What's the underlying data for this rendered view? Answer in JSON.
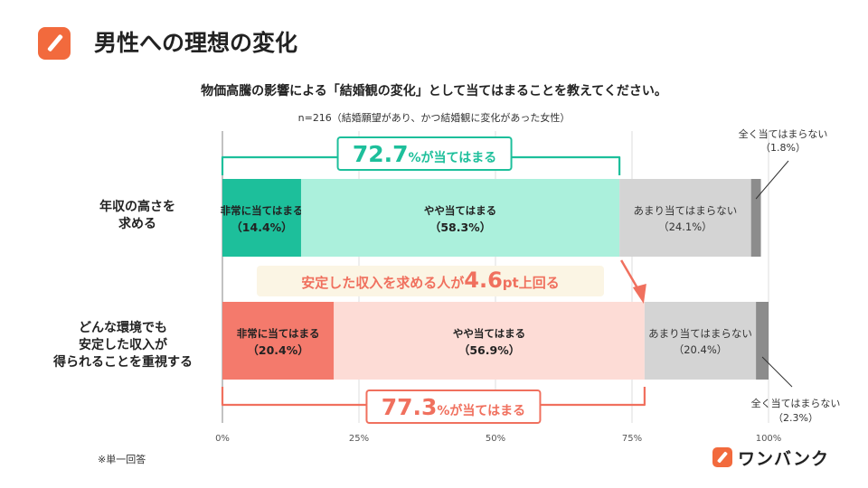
{
  "header": {
    "title": "男性への理想の変化",
    "question": "物価高騰の影響による「結婚観の変化」として当てはまることを教えてください。",
    "sample": "n=216（結婚願望があり、かつ結婚観に変化があった女性）"
  },
  "footer": {
    "note": "※単一回答",
    "brand": "ワンバンク"
  },
  "colors": {
    "row1": [
      "#1dbf9b",
      "#abf0dc",
      "#d4d4d4",
      "#8c8c8c"
    ],
    "row2": [
      "#f47a6c",
      "#fddcd6",
      "#d4d4d4",
      "#8c8c8c"
    ],
    "accent_green": "#1dbf9b",
    "accent_red": "#f0705e",
    "accent_brand": "#f26a3d"
  },
  "chart_data": {
    "type": "bar",
    "orientation": "horizontal",
    "stacked": true,
    "xlim": [
      0,
      100
    ],
    "x_ticks": [
      "0%",
      "25%",
      "50%",
      "75%",
      "100%"
    ],
    "categories": [
      [
        "年収の高さを",
        "求める"
      ],
      [
        "どんな環境でも",
        "安定した収入が",
        "得られることを重視する"
      ]
    ],
    "series": [
      {
        "name": "非常に当てはまる",
        "values": [
          14.4,
          20.4
        ],
        "labels": [
          "（14.4%）",
          "（20.4%）"
        ]
      },
      {
        "name": "やや当てはまる",
        "values": [
          58.3,
          56.9
        ],
        "labels": [
          "（58.3%）",
          "（56.9%）"
        ]
      },
      {
        "name": "あまり当てはまらない",
        "values": [
          24.1,
          20.4
        ],
        "labels": [
          "（24.1%）",
          "（20.4%）"
        ]
      },
      {
        "name": "全く当てはまらない",
        "values": [
          1.8,
          2.3
        ],
        "labels": [
          "（1.8%）",
          "（2.3%）"
        ]
      }
    ],
    "annotations": {
      "row1_total": {
        "value": "72.7",
        "suffix": "%が当てはまる"
      },
      "row2_total": {
        "value": "77.3",
        "suffix": "%が当てはまる"
      },
      "comparison": {
        "prefix": "安定した収入を求める人が",
        "value": "4.6",
        "unit": "pt",
        "suffix": "上回る"
      }
    }
  }
}
